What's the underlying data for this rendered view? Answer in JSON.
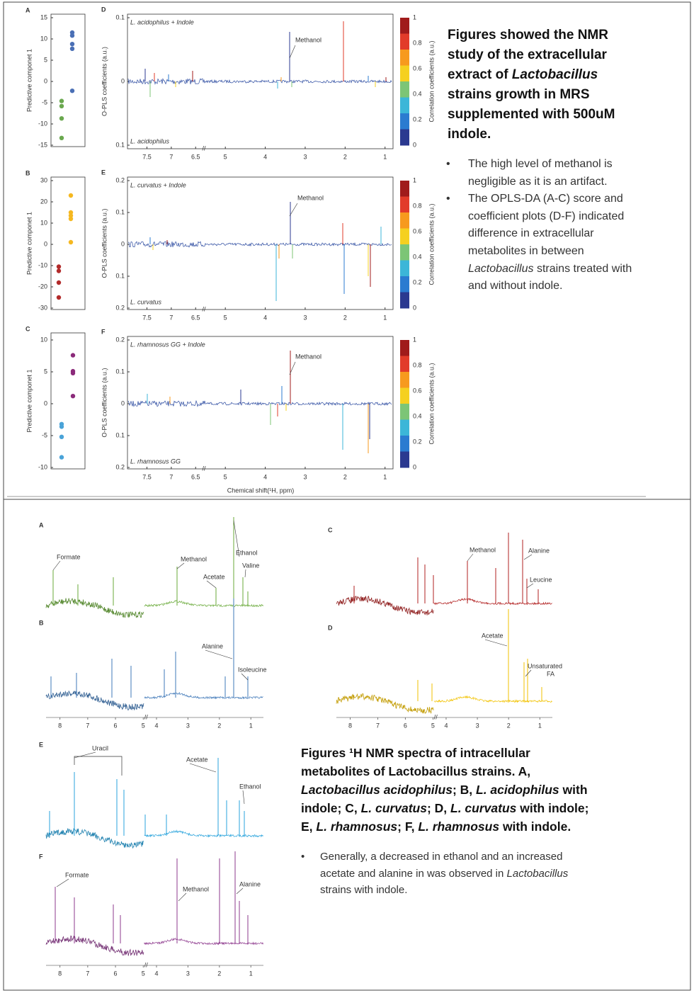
{
  "top": {
    "score_plots": [
      {
        "label": "A",
        "ylabel": "Predictive componet 1",
        "ylim": [
          15,
          -15
        ],
        "yticks": [
          15,
          10,
          5,
          0,
          -5,
          -10,
          -15
        ],
        "groups": [
          {
            "color": "#4a6fb5",
            "values": [
              11.5,
              10.8,
              8.8,
              7.7,
              -2.2
            ]
          },
          {
            "color": "#6aa84f",
            "values": [
              -4.6,
              -5.8,
              -8.7,
              -13.3
            ]
          }
        ]
      },
      {
        "label": "B",
        "ylabel": "Predictive componet 1",
        "ylim": [
          30,
          -30
        ],
        "yticks": [
          30,
          20,
          10,
          0,
          -10,
          -20,
          -30
        ],
        "groups": [
          {
            "color": "#b22a2a",
            "values": [
              -10.5,
              -12.5,
              -18,
              -25
            ]
          },
          {
            "color": "#f5b820",
            "values": [
              23,
              15,
              13.5,
              12,
              1
            ]
          }
        ]
      },
      {
        "label": "C",
        "ylabel": "Predictive componet 1",
        "ylim": [
          10,
          -10
        ],
        "yticks": [
          10,
          5,
          0,
          -5,
          -10
        ],
        "groups": [
          {
            "color": "#4aa3d8",
            "values": [
              -3.2,
              -3.6,
              -5.2,
              -8.4
            ]
          },
          {
            "color": "#8b2a7a",
            "values": [
              7.6,
              5.1,
              4.8,
              1.2
            ]
          }
        ]
      }
    ],
    "coefficient_plots": [
      {
        "label": "D",
        "ylabel": "O-PLS coefficients (a.u.)",
        "ylim": [
          0.1,
          -0.1
        ],
        "yticks": [
          0.1,
          0,
          {
            "value": -0.1,
            "label": "0.1"
          }
        ],
        "upper_group": {
          "name": "L. acidophilus + Indole",
          "color": "#4a6fb5"
        },
        "lower_group": {
          "name": "L. acidophilus",
          "color": "#6aa84f"
        },
        "annotation": "Methanol",
        "xlim": [
          7.9,
          0.8
        ],
        "x_break": [
          6.3,
          5.5
        ],
        "xticks": [
          7.5,
          7,
          6.5,
          5,
          4,
          3,
          2,
          1
        ]
      },
      {
        "label": "E",
        "ylabel": "O-PLS coefficients (a.u.)",
        "ylim": [
          0.2,
          -0.2
        ],
        "yticks": [
          0.2,
          0.1,
          0,
          {
            "value": -0.1,
            "label": "0.1"
          },
          {
            "value": -0.2,
            "label": "0.2"
          }
        ],
        "upper_group": {
          "name": "L. curvatus + Indole",
          "color": "#f5b820"
        },
        "lower_group": {
          "name": "L. curvatus",
          "color": "#b22a2a"
        },
        "annotation": "Methanol",
        "xlim": [
          7.9,
          0.8
        ],
        "x_break": [
          6.3,
          5.5
        ],
        "xticks": [
          7.5,
          7,
          6.5,
          5,
          4,
          3,
          2,
          1
        ]
      },
      {
        "label": "F",
        "ylabel": "O-PLS coefficients (a.u.)",
        "ylim": [
          0.2,
          -0.2
        ],
        "yticks": [
          0.2,
          0.1,
          0,
          {
            "value": -0.1,
            "label": "0.1"
          },
          {
            "value": -0.2,
            "label": "0.2"
          }
        ],
        "upper_group": {
          "name": "L. rhamnosus GG + Indole",
          "color": "#8b2a7a"
        },
        "lower_group": {
          "name": "L. rhamnosus GG",
          "color": "#4aa3d8"
        },
        "annotation": "Methanol",
        "xlim": [
          7.9,
          0.8
        ],
        "x_break": [
          6.3,
          5.5
        ],
        "xticks": [
          7.5,
          7,
          6.5,
          5,
          4,
          3,
          2,
          1
        ]
      }
    ],
    "colorbar": {
      "label": "Correlation coefficients (a.u.)",
      "ticks": [
        1,
        0.8,
        0.6,
        0.4,
        0.2,
        0
      ]
    },
    "xlabel": "Chemical shift(¹H, ppm)",
    "heading": [
      {
        "text": "Figures showed the NMR study of the extracellular extract of "
      },
      {
        "text": "Lactobacillus",
        "italic": true
      },
      {
        "text": " strains growth in MRS supplemented with 500uM indole."
      }
    ],
    "bullets": [
      [
        {
          "text": "The high level of methanol is negligible  as it is an artifact."
        }
      ],
      [
        {
          "text": "The OPLS-DA (A-C) score and coefficient plots (D-F) indicated difference in extracellular metabolites in between "
        },
        {
          "text": "Lactobacillus",
          "italic": true
        },
        {
          "text": " strains treated with and without indole."
        }
      ]
    ]
  },
  "bottom": {
    "spectra": [
      {
        "label": "A",
        "color": "#6aaa3a",
        "annotations": [
          "Formate",
          "Methanol",
          "Acetate",
          "Ethanol",
          "Valine"
        ]
      },
      {
        "label": "B",
        "color": "#3f78b8",
        "annotations": [
          "Alanine",
          "Isoleucine"
        ]
      },
      {
        "label": "C",
        "color": "#b22222",
        "annotations": [
          "Methanol",
          "Alanine",
          "Leucine"
        ]
      },
      {
        "label": "D",
        "color": "#f2c200",
        "annotations": [
          "Acetate",
          "Unsaturated",
          "FA"
        ]
      },
      {
        "label": "E",
        "color": "#29a3dc",
        "annotations": [
          "Uracil",
          "Acetate",
          "Ethanol"
        ]
      },
      {
        "label": "F",
        "color": "#8e3a8e",
        "annotations": [
          "Formate",
          "Methanol",
          "Alanine"
        ]
      }
    ],
    "axes": [
      {
        "xlim": [
          8.5,
          0.6
        ],
        "x_break": [
          4.9,
          4.4
        ],
        "xticks": [
          8,
          7,
          6,
          5,
          4,
          3,
          2,
          1
        ]
      },
      {
        "xlim": [
          8.5,
          0.6
        ],
        "x_break": [
          4.9,
          4.4
        ],
        "xticks": [
          8,
          7,
          6,
          5,
          4,
          3,
          2,
          1
        ]
      },
      {
        "xlim": [
          8.5,
          0.6
        ],
        "x_break": [
          4.9,
          4.4
        ],
        "xticks": [
          8,
          7,
          6,
          5,
          4,
          3,
          2,
          1
        ]
      }
    ],
    "caption": [
      {
        "text": "Figures ¹H NMR spectra of intracellular metabolites of Lactobacillus strains. A, "
      },
      {
        "text": "Lactobacillus acidophilus",
        "italic": true
      },
      {
        "text": "; B, "
      },
      {
        "text": "L. acidophilus",
        "italic": true
      },
      {
        "text": " with indole; C, "
      },
      {
        "text": "L. curvatus",
        "italic": true
      },
      {
        "text": "; D, "
      },
      {
        "text": "L. curvatus",
        "italic": true
      },
      {
        "text": " with indole; E, "
      },
      {
        "text": "L. rhamnosus",
        "italic": true
      },
      {
        "text": "; F, "
      },
      {
        "text": "L. rhamnosus",
        "italic": true
      },
      {
        "text": " with indole."
      }
    ],
    "bullets": [
      [
        {
          "text": "Generally, a decreased in ethanol and an increased acetate and alanine in was observed in "
        },
        {
          "text": "Lactobacillus",
          "italic": true
        },
        {
          "text": " strains with indole."
        }
      ]
    ]
  }
}
